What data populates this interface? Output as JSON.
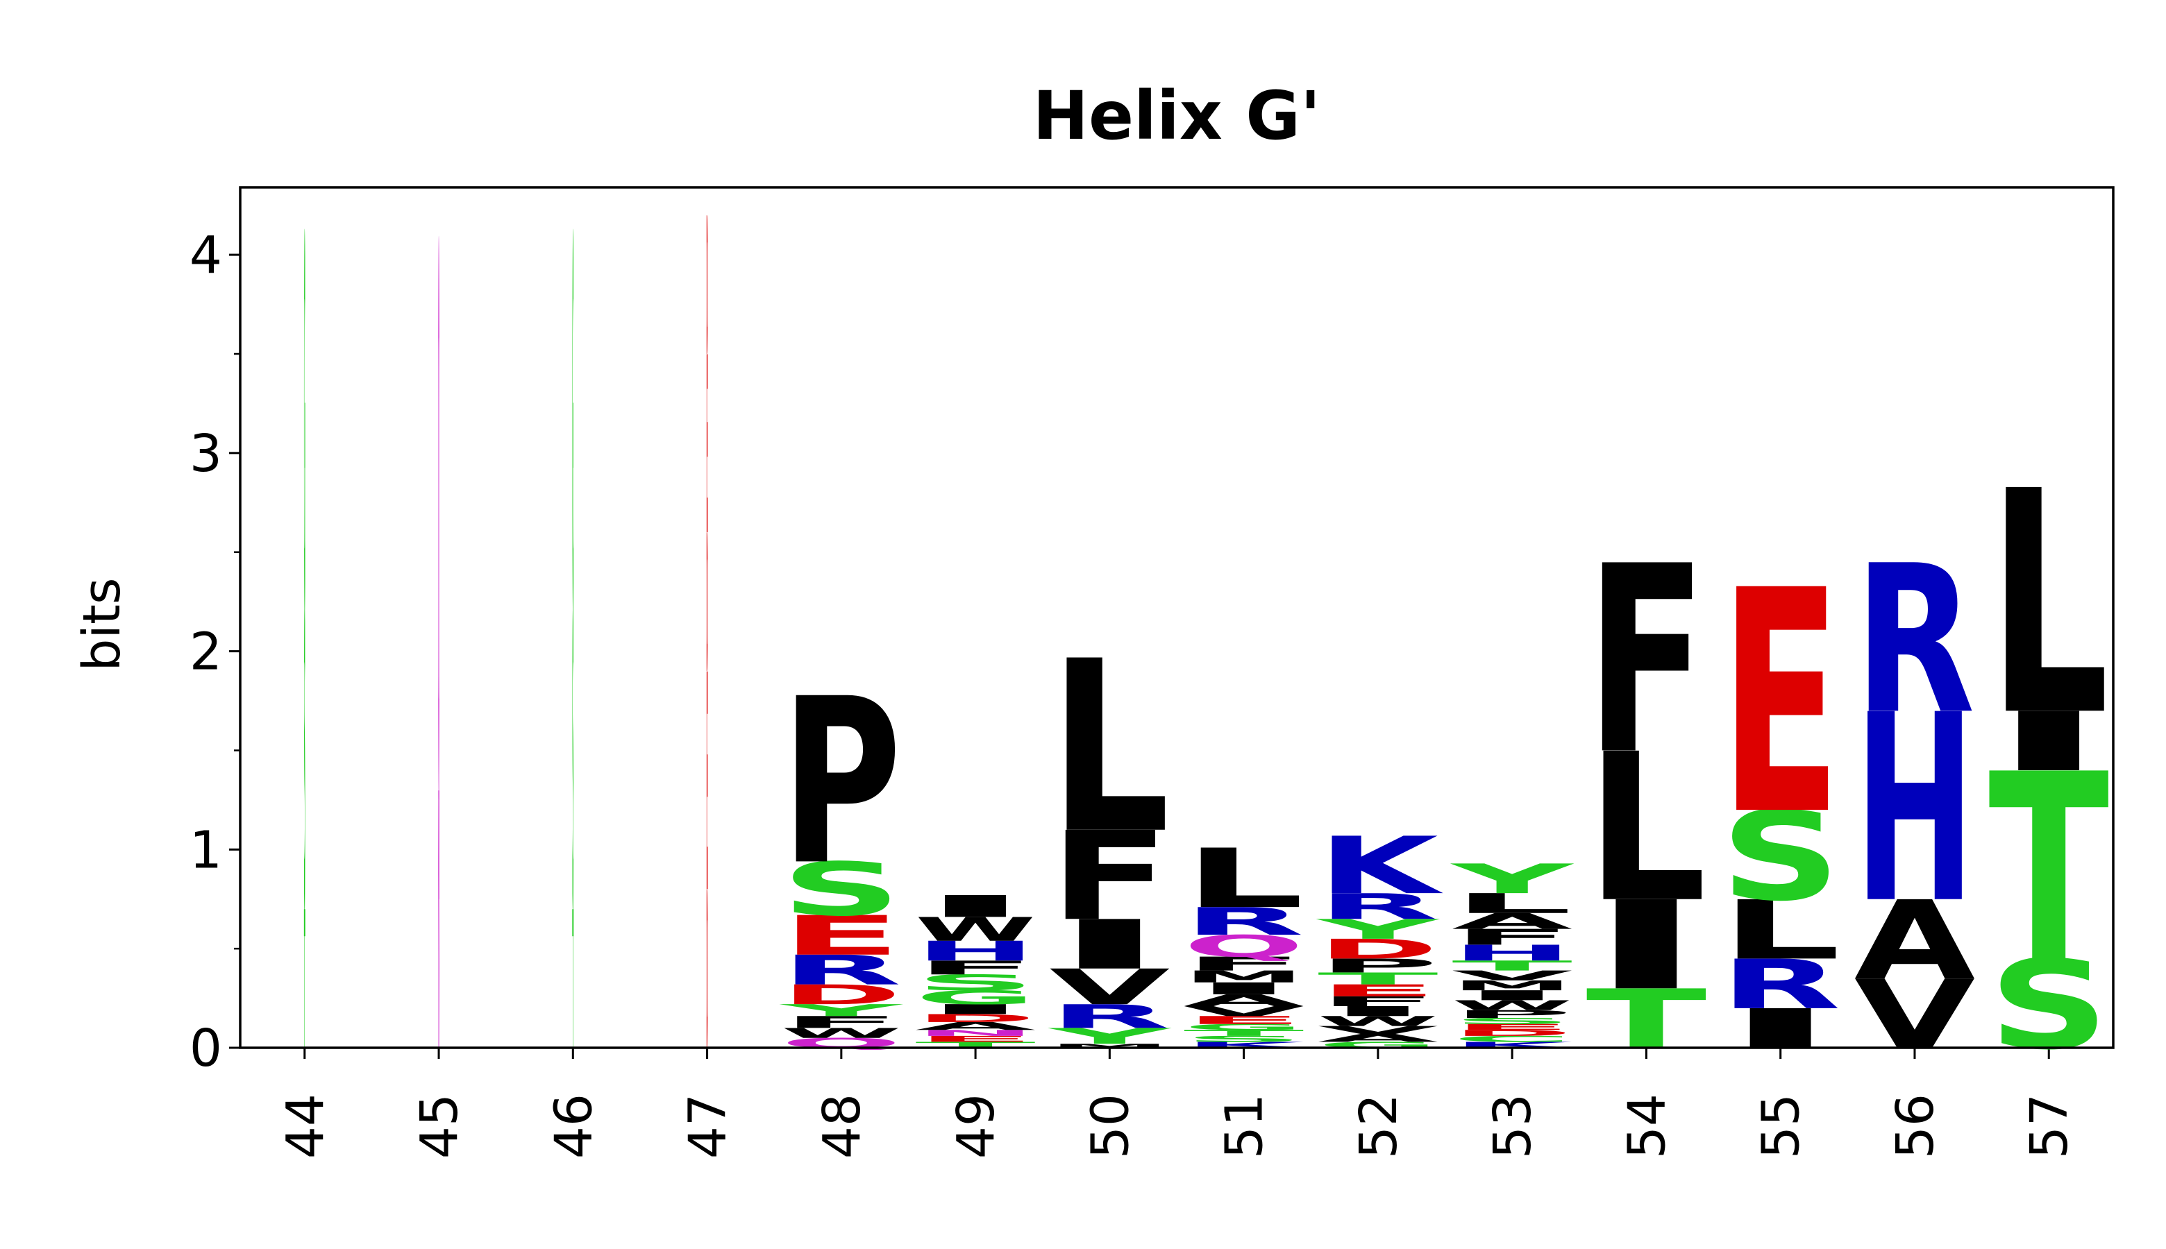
{
  "chart_data": {
    "type": "logo",
    "title": "Helix G'",
    "ylabel": "bits",
    "ylim": [
      0,
      4.34
    ],
    "yticks": [
      0,
      1,
      2,
      3,
      4
    ],
    "yminor_ticks": [
      0.5,
      1.5,
      2.5,
      3.5
    ],
    "categories": [
      "44",
      "45",
      "46",
      "47",
      "48",
      "49",
      "50",
      "51",
      "52",
      "53",
      "54",
      "55",
      "56",
      "57"
    ],
    "letter_colors": {
      "G": "#22cc22",
      "S": "#22cc22",
      "T": "#22cc22",
      "Y": "#22cc22",
      "C": "#22cc22",
      "N": "#cc22cc",
      "Q": "#cc22cc",
      "D": "#dd0000",
      "E": "#dd0000",
      "K": "#0000bb",
      "R": "#0000bb",
      "H": "#0000bb",
      "A": "#000000",
      "F": "#000000",
      "I": "#000000",
      "L": "#000000",
      "M": "#000000",
      "P": "#000000",
      "V": "#000000",
      "W": "#000000"
    },
    "stacks": [
      {
        "width": 0.01,
        "letters": [
          "T",
          "S",
          "G"
        ],
        "values": [
          0.7,
          1.5,
          1.9
        ]
      },
      {
        "width": 0.01,
        "letters": [
          "N",
          "Q"
        ],
        "values": [
          1.3,
          2.75
        ]
      },
      {
        "width": 0.01,
        "letters": [
          "T",
          "S",
          "G"
        ],
        "values": [
          0.7,
          1.5,
          1.9
        ]
      },
      {
        "width": 0.01,
        "letters": [
          "D",
          "E",
          "D",
          "E",
          "D"
        ],
        "values": [
          0.8,
          1.1,
          0.7,
          0.9,
          0.7
        ]
      },
      {
        "width": 0.9,
        "letters": [
          "Q",
          "W",
          "F",
          "Y",
          "D",
          "R",
          "E",
          "S",
          "P"
        ],
        "values": [
          0.05,
          0.05,
          0.06,
          0.06,
          0.1,
          0.15,
          0.2,
          0.27,
          0.84
        ]
      },
      {
        "width": 0.9,
        "letters": [
          "T",
          "E",
          "N",
          "A",
          "D",
          "I",
          "G",
          "S",
          "F",
          "H",
          "W",
          "I"
        ],
        "values": [
          0.03,
          0.03,
          0.03,
          0.04,
          0.04,
          0.05,
          0.07,
          0.08,
          0.07,
          0.1,
          0.12,
          0.11
        ]
      },
      {
        "width": 0.9,
        "letters": [
          "M",
          "Y",
          "R",
          "V",
          "I",
          "F",
          "L"
        ],
        "values": [
          0.02,
          0.08,
          0.12,
          0.18,
          0.25,
          0.45,
          0.87
        ]
      },
      {
        "width": 0.9,
        "letters": [
          "K",
          "S",
          "T",
          "G",
          "E",
          "V",
          "A",
          "I",
          "M",
          "F",
          "Q",
          "R",
          "L"
        ],
        "values": [
          0.03,
          0.03,
          0.03,
          0.03,
          0.04,
          0.05,
          0.06,
          0.06,
          0.06,
          0.07,
          0.11,
          0.14,
          0.3
        ]
      },
      {
        "width": 0.9,
        "letters": [
          "G",
          "A",
          "V",
          "W",
          "I",
          "F",
          "E",
          "T",
          "P",
          "D",
          "Y",
          "R",
          "K"
        ],
        "values": [
          0.03,
          0.04,
          0.04,
          0.05,
          0.05,
          0.05,
          0.06,
          0.06,
          0.07,
          0.1,
          0.1,
          0.13,
          0.29
        ]
      },
      {
        "width": 0.9,
        "letters": [
          "K",
          "C",
          "D",
          "E",
          "S",
          "P",
          "W",
          "I",
          "M",
          "V",
          "T",
          "H",
          "F",
          "A",
          "L",
          "Y"
        ],
        "values": [
          0.03,
          0.03,
          0.03,
          0.03,
          0.03,
          0.04,
          0.05,
          0.05,
          0.05,
          0.05,
          0.05,
          0.08,
          0.08,
          0.08,
          0.1,
          0.15
        ]
      },
      {
        "width": 0.9,
        "letters": [
          "T",
          "I",
          "L",
          "F"
        ],
        "values": [
          0.3,
          0.45,
          0.75,
          0.95
        ]
      },
      {
        "width": 0.9,
        "letters": [
          "I",
          "R",
          "L",
          "S",
          "E"
        ],
        "values": [
          0.2,
          0.25,
          0.3,
          0.45,
          1.13
        ]
      },
      {
        "width": 0.9,
        "letters": [
          "V",
          "A",
          "H",
          "R"
        ],
        "values": [
          0.35,
          0.4,
          0.95,
          0.75
        ]
      },
      {
        "width": 0.9,
        "letters": [
          "S",
          "T",
          "I",
          "L"
        ],
        "values": [
          0.45,
          0.95,
          0.3,
          1.13
        ]
      }
    ]
  }
}
